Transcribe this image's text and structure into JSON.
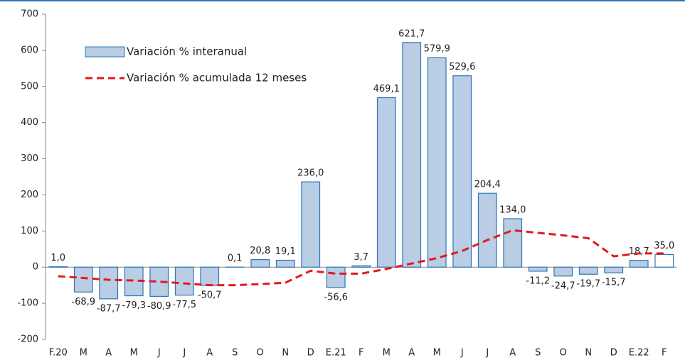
{
  "chart_data": {
    "type": "bar",
    "categories": [
      "F.20",
      "M",
      "A",
      "M",
      "J",
      "J",
      "A",
      "S",
      "O",
      "N",
      "D",
      "E.21",
      "F",
      "M",
      "A",
      "M",
      "J",
      "J",
      "A",
      "S",
      "O",
      "N",
      "D",
      "E.22",
      "F"
    ],
    "series": [
      {
        "name": "Variación % interanual",
        "type": "bar",
        "color": "#b9cde5",
        "edge_color": "#2e75b6",
        "colors": [
          "#b9cde5",
          "#b9cde5",
          "#b9cde5",
          "#b9cde5",
          "#b9cde5",
          "#b9cde5",
          "#b9cde5",
          "#b9cde5",
          "#b9cde5",
          "#b9cde5",
          "#b9cde5",
          "#b9cde5",
          "#b9cde5",
          "#b9cde5",
          "#b9cde5",
          "#b9cde5",
          "#b9cde5",
          "#b9cde5",
          "#b9cde5",
          "#b9cde5",
          "#b9cde5",
          "#b9cde5",
          "#b9cde5",
          "#b9cde5",
          "#ffffff"
        ],
        "values": [
          1.0,
          -68.9,
          -87.7,
          -79.3,
          -80.9,
          -77.5,
          -50.7,
          0.1,
          20.8,
          19.1,
          236.0,
          -56.6,
          3.7,
          469.1,
          621.7,
          579.9,
          529.6,
          204.4,
          134.0,
          -11.2,
          -24.7,
          -19.7,
          -15.7,
          18.7,
          35.0
        ],
        "value_labels": [
          "1,0",
          "-68,9",
          "-87,7",
          "-79,3",
          "-80,9",
          "-77,5",
          "-50,7",
          "0,1",
          "20,8",
          "19,1",
          "236,0",
          "-56,6",
          "3,7",
          "469,1",
          "621,7",
          "579,9",
          "529,6",
          "204,4",
          "134,0",
          "-11,2",
          "-24,7",
          "-19,7",
          "-15,7",
          "18,7",
          "35,0"
        ]
      },
      {
        "name": "Variación % acumulada 12 meses",
        "type": "line",
        "color": "#e31a1c",
        "dashed": true,
        "values": [
          -25,
          -30,
          -35,
          -37,
          -40,
          -45,
          -50,
          -50,
          -47,
          -43,
          -10,
          -18,
          -18,
          -5,
          10,
          25,
          45,
          75,
          102,
          95,
          88,
          80,
          30,
          38,
          38
        ]
      }
    ],
    "ylim": [
      -200,
      700
    ],
    "yticks": [
      {
        "value": -200,
        "label": "-200"
      },
      {
        "value": -100,
        "label": "-100"
      },
      0,
      100,
      200,
      300,
      400,
      500,
      600,
      700
    ],
    "legend": "top-left"
  }
}
